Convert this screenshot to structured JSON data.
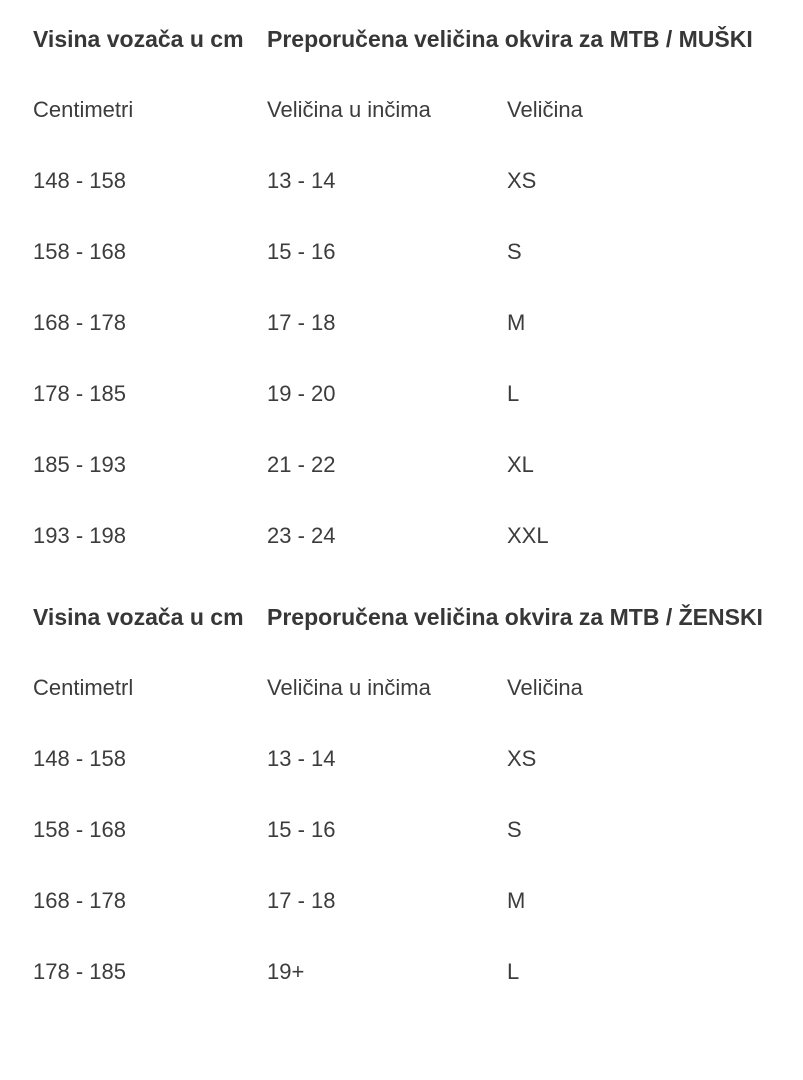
{
  "page": {
    "background_color": "#ffffff",
    "text_color": "#3c3c3c"
  },
  "tables": [
    {
      "header": {
        "col1": "Visina vozača u cm",
        "col2": "Preporučena veličina okvira za MTB / MUŠKI"
      },
      "subheader": {
        "col1": "Centimetri",
        "col2": "Veličina u inčima",
        "col3": "Veličina"
      },
      "rows": [
        {
          "cm": "148 - 158",
          "inches": "13 - 14",
          "size": "XS"
        },
        {
          "cm": "158 - 168",
          "inches": "15 - 16",
          "size": "S"
        },
        {
          "cm": "168 - 178",
          "inches": "17 - 18",
          "size": "M"
        },
        {
          "cm": "178 - 185",
          "inches": "19 - 20",
          "size": "L"
        },
        {
          "cm": "185 - 193",
          "inches": "21 - 22",
          "size": "XL"
        },
        {
          "cm": "193 - 198",
          "inches": "23 - 24",
          "size": "XXL"
        }
      ]
    },
    {
      "header": {
        "col1": "Visina vozača u cm",
        "col2": "Preporučena veličina okvira za MTB / ŽENSKI"
      },
      "subheader": {
        "col1": "Centimetrl",
        "col2": "Veličina u inčima",
        "col3": "Veličina"
      },
      "rows": [
        {
          "cm": "148 - 158",
          "inches": "13 - 14",
          "size": "XS"
        },
        {
          "cm": "158 - 168",
          "inches": "15 - 16",
          "size": "S"
        },
        {
          "cm": "168 - 178",
          "inches": "17 - 18",
          "size": "M"
        },
        {
          "cm": "178 - 185",
          "inches": "19+",
          "size": "L"
        }
      ]
    }
  ]
}
